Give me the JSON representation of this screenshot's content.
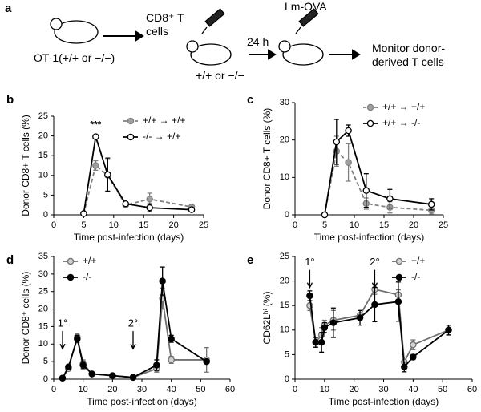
{
  "schematic": {
    "panel": "a",
    "donor": "OT-1(+/+ or −/−)",
    "cells": "CD8⁺ T cells",
    "infection": "Lm-OVA",
    "delay": "24 h",
    "recipient": "+/+ or −/−",
    "outcome": "Monitor donor-derived T cells"
  },
  "chart_data": [
    {
      "type": "line",
      "panel": "b",
      "xlabel": "Time post-infection (days)",
      "ylabel": "Donor CD8+ T cells (%)",
      "xlim": [
        0,
        25
      ],
      "xticks": [
        0,
        5,
        10,
        15,
        20,
        25
      ],
      "ylim": [
        0,
        25
      ],
      "yticks": [
        0,
        5,
        10,
        15,
        20,
        25
      ],
      "legend": "top-right",
      "annotations": [
        {
          "text": "***",
          "x": 7
        }
      ],
      "x": [
        5,
        7,
        9,
        12,
        16,
        23
      ],
      "series": [
        {
          "name": "+/+ → +/+",
          "color": "#808080",
          "marker_fill": "#a0a0a0",
          "line_style": "dashed",
          "values": [
            0.3,
            12.5,
            10,
            2.5,
            4,
            2
          ],
          "errors": [
            null,
            1.2,
            4,
            0.5,
            1.5,
            0.6
          ]
        },
        {
          "name": "-/- → +/+",
          "color": "#000000",
          "marker_fill": "#ffffff",
          "line_style": "solid",
          "values": [
            0.3,
            19.8,
            10.2,
            2.8,
            1.8,
            1.3
          ],
          "errors": [
            null,
            0.5,
            4.2,
            0.5,
            1,
            0.5
          ]
        }
      ]
    },
    {
      "type": "line",
      "panel": "c",
      "xlabel": "Time post-infection (days)",
      "ylabel": "Donor CD8+ T cells (%)",
      "xlim": [
        0,
        25
      ],
      "xticks": [
        0,
        5,
        10,
        15,
        20,
        25
      ],
      "ylim": [
        0,
        30
      ],
      "yticks": [
        0,
        10,
        20,
        30
      ],
      "legend": "top-right",
      "x": [
        5,
        7,
        9,
        12,
        16,
        23
      ],
      "series": [
        {
          "name": "+/+ → +/+",
          "color": "#808080",
          "marker_fill": "#a0a0a0",
          "line_style": "dashed",
          "values": [
            0,
            17,
            14,
            3,
            2,
            1.2
          ],
          "errors": [
            null,
            4,
            5,
            1.5,
            1.5,
            1
          ]
        },
        {
          "name": "+/+ → -/-",
          "color": "#000000",
          "marker_fill": "#ffffff",
          "line_style": "solid",
          "values": [
            0,
            19.5,
            22.5,
            6.5,
            4.3,
            2.8
          ],
          "errors": [
            null,
            6,
            1.5,
            4.5,
            2.5,
            1.5
          ]
        }
      ]
    },
    {
      "type": "line",
      "panel": "d",
      "xlabel": "Time post-infection (days)",
      "ylabel": "Donor CD8⁺ cells (%)",
      "xlim": [
        0,
        60
      ],
      "xticks": [
        0,
        10,
        20,
        30,
        40,
        50,
        60
      ],
      "ylim": [
        0,
        35
      ],
      "yticks": [
        0,
        5,
        10,
        15,
        20,
        25,
        30,
        35
      ],
      "legend": "top-left",
      "annotations": [
        {
          "text": "1°",
          "x": 3
        },
        {
          "text": "2°",
          "x": 27
        }
      ],
      "x": [
        3,
        5,
        8,
        10,
        13,
        20,
        27,
        35,
        37,
        40,
        52
      ],
      "series": [
        {
          "name": "+/+",
          "color": "#707070",
          "marker_fill": "#d0d0d0",
          "line_style": "solid",
          "values": [
            0.3,
            3,
            12,
            4.5,
            1.5,
            1,
            0.5,
            3,
            23,
            5.5,
            5.5
          ],
          "errors": [
            null,
            0.5,
            1,
            1,
            null,
            null,
            null,
            1,
            3,
            1,
            3.5
          ]
        },
        {
          "name": "-/-",
          "color": "#000000",
          "marker_fill": "#000000",
          "line_style": "solid",
          "values": [
            0.3,
            3.5,
            11.5,
            4,
            1.5,
            1,
            0.5,
            4,
            28,
            11.5,
            5
          ],
          "errors": [
            null,
            0.5,
            1,
            1,
            null,
            null,
            null,
            1.5,
            4,
            1,
            0.5
          ]
        }
      ]
    },
    {
      "type": "line",
      "panel": "e",
      "xlabel": "Time post-infection (days)",
      "ylabel": "CD62Lʰⁱ (%)",
      "xlim": [
        0,
        60
      ],
      "xticks": [
        0,
        10,
        20,
        30,
        40,
        50,
        60
      ],
      "ylim": [
        0,
        25
      ],
      "yticks": [
        0,
        5,
        10,
        15,
        20,
        25
      ],
      "legend": "top-right",
      "annotations": [
        {
          "text": "1°",
          "x": 5
        },
        {
          "text": "2°",
          "x": 27
        }
      ],
      "x": [
        5,
        7,
        9,
        10,
        13,
        22,
        27,
        35,
        37,
        40,
        52
      ],
      "series": [
        {
          "name": "+/+",
          "color": "#707070",
          "marker_fill": "#d0d0d0",
          "line_style": "solid",
          "values": [
            15,
            7.5,
            9,
            11,
            12,
            13,
            18.3,
            17.2,
            3.5,
            7,
            10
          ],
          "errors": [
            1,
            1,
            1.5,
            1,
            2,
            1,
            1,
            1,
            1,
            1,
            1
          ]
        },
        {
          "name": "-/-",
          "color": "#000000",
          "marker_fill": "#000000",
          "line_style": "solid",
          "values": [
            17,
            7.5,
            7.5,
            10.5,
            11.5,
            12.5,
            15.2,
            15.8,
            2.5,
            4.5,
            10
          ],
          "errors": [
            1,
            1,
            2,
            1,
            3,
            1.5,
            3.5,
            4,
            1,
            0.5,
            1
          ]
        }
      ]
    }
  ]
}
